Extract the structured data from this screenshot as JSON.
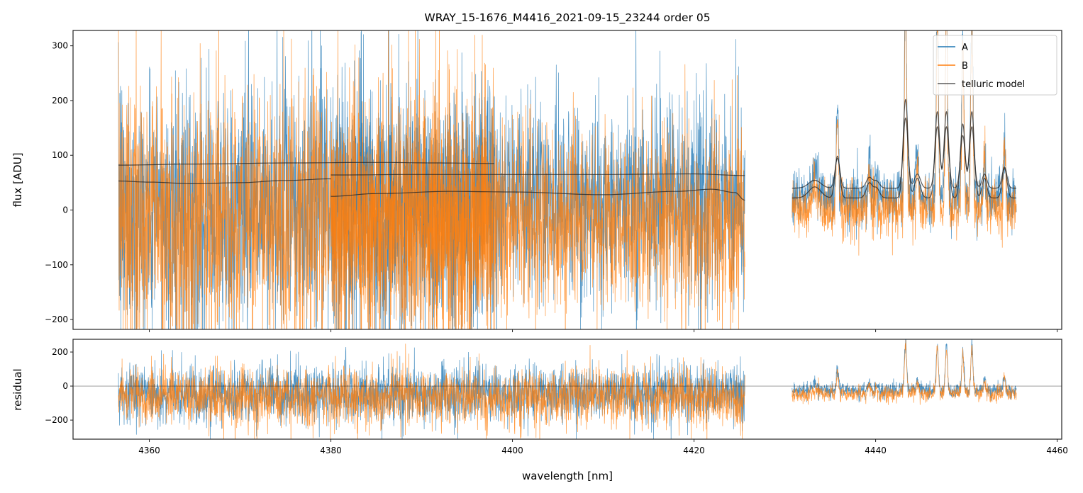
{
  "chart_data": {
    "type": "line",
    "title": "WRAY_15-1676_M4416_2021-09-15_23244  order 05",
    "xlabel": "wavelength [nm]",
    "xlim": [
      4351.6,
      4460.5
    ],
    "xticks": [
      4360,
      4380,
      4400,
      4420,
      4440,
      4460
    ],
    "panels": [
      {
        "name": "flux",
        "ylabel": "flux [ADU]",
        "ylim": [
          -218,
          328
        ],
        "yticks": [
          -200,
          -100,
          0,
          100,
          200,
          300
        ]
      },
      {
        "name": "residual",
        "ylabel": "residual",
        "ylim": [
          -312,
          275
        ],
        "yticks": [
          -200,
          0,
          200
        ],
        "zero_line": true
      }
    ],
    "legend": {
      "placement": "top-right",
      "entries": [
        "A",
        "B",
        "telluric model"
      ]
    },
    "colors": {
      "A": "#1f77b4",
      "B": "#ff7f0e",
      "telluric model": "#333333"
    },
    "emission_peaks": [
      [
        4433.3,
        45,
        0.3
      ],
      [
        4435.8,
        170,
        0.12
      ],
      [
        4439.3,
        60,
        0.15
      ],
      [
        4440.1,
        40,
        0.15
      ],
      [
        4443.3,
        400,
        0.12
      ],
      [
        4444.6,
        80,
        0.15
      ],
      [
        4446.8,
        350,
        0.12
      ],
      [
        4447.8,
        350,
        0.12
      ],
      [
        4449.6,
        300,
        0.12
      ],
      [
        4450.6,
        350,
        0.12
      ],
      [
        4452.0,
        80,
        0.12
      ],
      [
        4454.2,
        120,
        0.12
      ]
    ],
    "series": [
      {
        "name": "A",
        "flux_segments": [
          {
            "x": [
              4356.6,
              4398.0
            ],
            "mean": 0,
            "sigma": 105,
            "peaks": false
          },
          {
            "x": [
              4380.0,
              4425.6
            ],
            "mean": 20,
            "sigma": 80,
            "peaks": false
          },
          {
            "x": [
              4430.8,
              4455.5
            ],
            "mean": 25,
            "sigma": 22,
            "peaks": true
          }
        ],
        "residual_segments": [
          {
            "x": [
              4356.6,
              4425.6
            ],
            "mean": -45,
            "sigma": 75,
            "peaks": false
          },
          {
            "x": [
              4430.8,
              4455.5
            ],
            "mean": -25,
            "sigma": 20,
            "peaks": true
          }
        ]
      },
      {
        "name": "B",
        "flux_segments": [
          {
            "x": [
              4356.6,
              4398.0
            ],
            "mean": -20,
            "sigma": 115,
            "peaks": false
          },
          {
            "x": [
              4380.0,
              4425.6
            ],
            "mean": -20,
            "sigma": 80,
            "peaks": false
          },
          {
            "x": [
              4430.8,
              4455.5
            ],
            "mean": 0,
            "sigma": 22,
            "peaks": true
          }
        ],
        "residual_segments": [
          {
            "x": [
              4356.6,
              4425.6
            ],
            "mean": -65,
            "sigma": 75,
            "peaks": false
          },
          {
            "x": [
              4430.8,
              4455.5
            ],
            "mean": -45,
            "sigma": 20,
            "peaks": true
          }
        ]
      }
    ],
    "telluric_model": [
      {
        "points": [
          [
            4356.6,
            82
          ],
          [
            4365,
            84
          ],
          [
            4375,
            86
          ],
          [
            4385,
            87
          ],
          [
            4392,
            86
          ],
          [
            4398,
            85
          ]
        ]
      },
      {
        "points": [
          [
            4356.6,
            53
          ],
          [
            4360,
            51
          ],
          [
            4365,
            48
          ],
          [
            4370,
            50
          ],
          [
            4375,
            54
          ],
          [
            4380,
            57
          ]
        ]
      },
      {
        "points": [
          [
            4380,
            64
          ],
          [
            4390,
            65
          ],
          [
            4400,
            65
          ],
          [
            4410,
            65
          ],
          [
            4420,
            66
          ],
          [
            4425.6,
            63
          ]
        ]
      },
      {
        "points": [
          [
            4380,
            25
          ],
          [
            4385,
            30
          ],
          [
            4393,
            34
          ],
          [
            4400,
            33
          ],
          [
            4410,
            28
          ],
          [
            4418,
            34
          ],
          [
            4422,
            38
          ],
          [
            4424.5,
            32
          ],
          [
            4425.6,
            18
          ]
        ]
      },
      {
        "x": [
          4430.8,
          4455.5
        ],
        "base": 40,
        "peak_scale": 0.32
      },
      {
        "x": [
          4430.8,
          4455.5
        ],
        "base": 22,
        "peak_scale": 0.45
      }
    ]
  }
}
